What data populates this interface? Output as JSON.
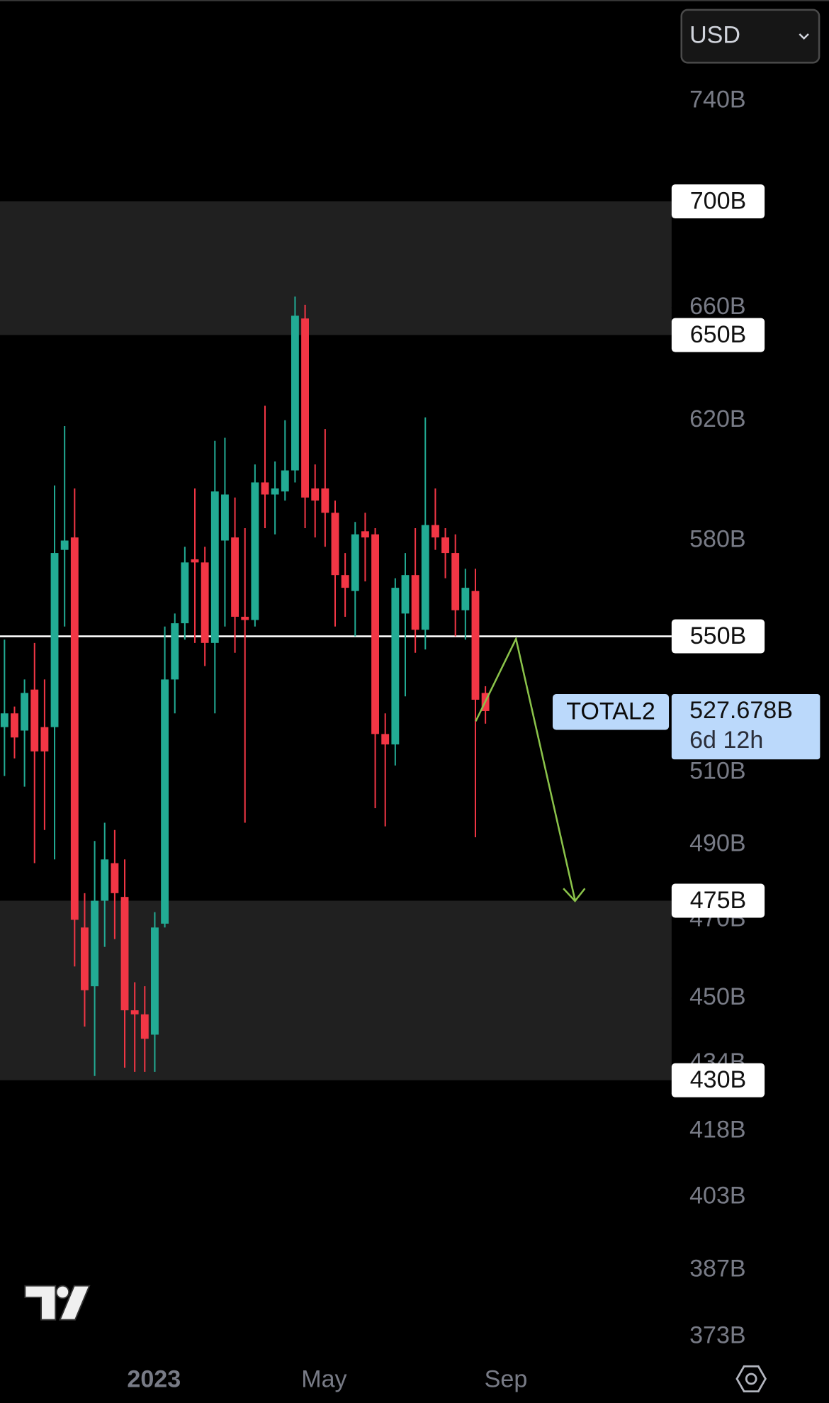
{
  "chart_data": {
    "type": "candlestick",
    "symbol": "TOTAL2",
    "currency": "USD",
    "countdown": "6d 12h",
    "last_price_label": "527.678B",
    "log_scale": true,
    "colors": {
      "up": "#22ab94",
      "down": "#f23645",
      "line": "#ffffff",
      "zone": "#202020",
      "last": "#bbd9fb"
    },
    "open": [
      523,
      527,
      522,
      534,
      523,
      523,
      577,
      581,
      468,
      453,
      475,
      485,
      476,
      447,
      446,
      441,
      469,
      537,
      554,
      574,
      573,
      548,
      580,
      581,
      556,
      555,
      599,
      595,
      596,
      603,
      656,
      597,
      597,
      589,
      569,
      564,
      583,
      582,
      521,
      518,
      557,
      569,
      552,
      585,
      581,
      576,
      558,
      564,
      533
    ],
    "high": [
      549,
      529,
      537,
      548,
      537,
      598,
      618,
      597,
      477,
      491,
      496,
      494,
      486,
      454,
      453,
      472,
      553,
      557,
      578,
      597,
      578,
      613,
      614,
      594,
      584,
      605,
      625,
      606,
      620,
      664,
      661,
      605,
      617,
      593,
      576,
      586,
      589,
      584,
      527,
      568,
      576,
      584,
      621,
      597,
      584,
      582,
      571,
      571,
      535
    ],
    "low": [
      509,
      514,
      506,
      485,
      494,
      486,
      553,
      458,
      443,
      431,
      463,
      465,
      433,
      432,
      432,
      432,
      468,
      527,
      549,
      548,
      541,
      527,
      553,
      545,
      496,
      553,
      584,
      582,
      593,
      599,
      584,
      581,
      578,
      553,
      556,
      550,
      567,
      500,
      495,
      512,
      532,
      545,
      546,
      577,
      568,
      550,
      549,
      492,
      524
    ],
    "close": [
      527,
      520,
      533,
      516,
      516,
      576,
      580,
      470,
      452,
      475,
      486,
      477,
      447,
      446,
      440,
      468,
      537,
      554,
      573,
      573,
      548,
      596,
      595,
      556,
      555,
      599,
      595,
      597,
      603,
      657,
      594,
      593,
      589,
      569,
      565,
      582,
      581,
      521,
      518,
      565,
      569,
      552,
      585,
      581,
      576,
      558,
      565,
      531,
      527.678
    ],
    "xlim": [
      -0.447,
      66.58
    ],
    "xticks": [
      {
        "value": 14.92,
        "label": "2023"
      },
      {
        "value": 31.9,
        "label": "May"
      },
      {
        "value": 50.04,
        "label": "Sep"
      }
    ],
    "ylim": [
      368.2,
      782.7
    ],
    "yticks": [
      {
        "value": 740,
        "label": "740B"
      },
      {
        "value": 660,
        "label": "660B"
      },
      {
        "value": 620,
        "label": "620B"
      },
      {
        "value": 580,
        "label": "580B"
      },
      {
        "value": 510,
        "label": "510B"
      },
      {
        "value": 490,
        "label": "490B"
      },
      {
        "value": 470,
        "label": "470B"
      },
      {
        "value": 450,
        "label": "450B"
      },
      {
        "value": 434,
        "label": "434B"
      },
      {
        "value": 418,
        "label": "418B"
      },
      {
        "value": 403,
        "label": "403B"
      },
      {
        "value": 387,
        "label": "387B"
      },
      {
        "value": 373,
        "label": "373B"
      }
    ],
    "zones": [
      {
        "top": {
          "value": 700,
          "label": "700B"
        },
        "bottom": {
          "value": 650,
          "label": "650B"
        }
      },
      {
        "top": {
          "value": 475,
          "label": "475B"
        },
        "bottom": {
          "value": 430,
          "label": "430B"
        }
      }
    ],
    "line": {
      "value": 550,
      "label": "550B"
    }
  }
}
